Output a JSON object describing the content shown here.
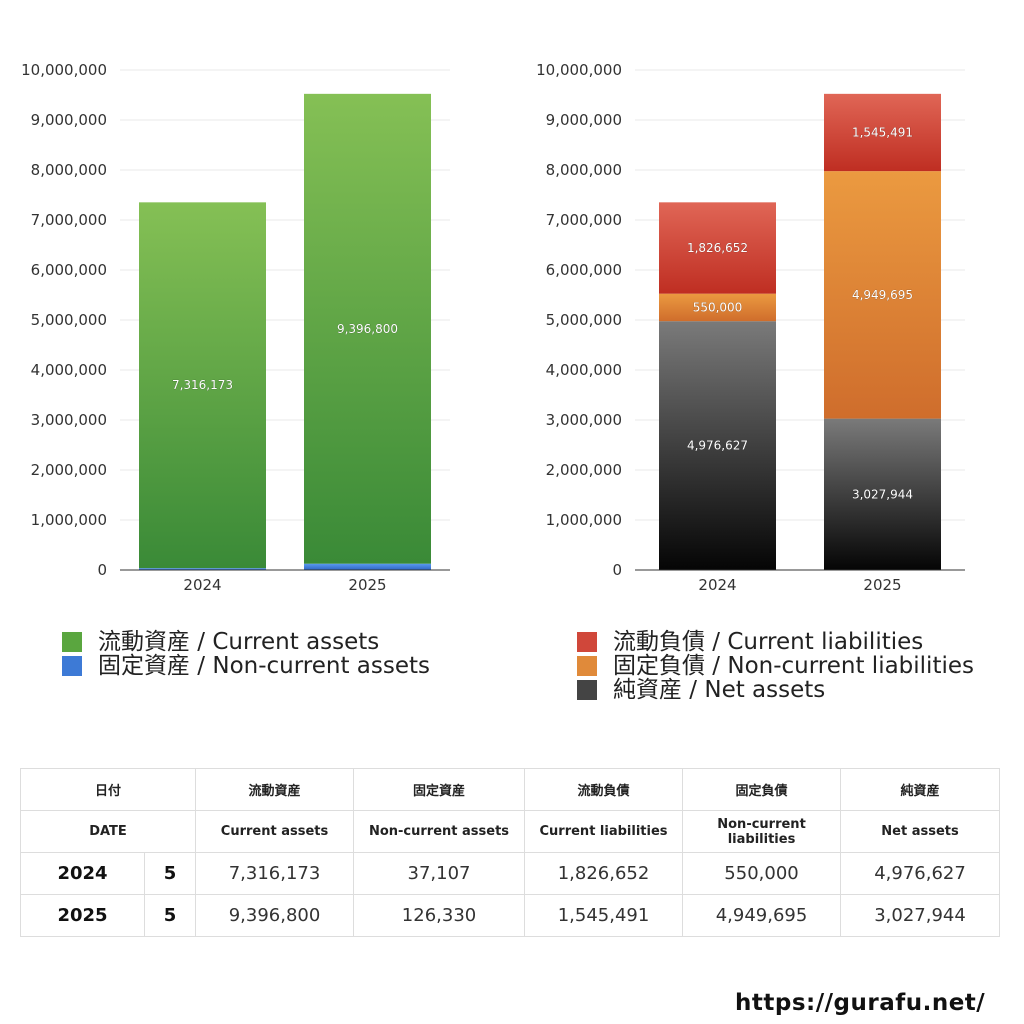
{
  "colors": {
    "current_assets": "#5aa63f",
    "noncurrent_assets": "#3d7ad6",
    "current_liabilities": "#d0473a",
    "noncurrent_liabilities": "#e08a3a",
    "net_assets": "#444444",
    "grid": "#e8e8e8",
    "axis": "#333333"
  },
  "chart_data": [
    {
      "type": "bar",
      "stacked": true,
      "categories": [
        "2024",
        "2025"
      ],
      "ylim": [
        0,
        10000000
      ],
      "yticks": [
        "0",
        "1,000,000",
        "2,000,000",
        "3,000,000",
        "4,000,000",
        "5,000,000",
        "6,000,000",
        "7,000,000",
        "8,000,000",
        "9,000,000",
        "10,000,000"
      ],
      "grid": true,
      "series": [
        {
          "name": "固定資産 / Non-current assets",
          "key": "noncurrent_assets",
          "values": [
            37107,
            126330
          ],
          "labels": [
            "37,107",
            "126,330"
          ]
        },
        {
          "name": "流動資産 / Current assets",
          "key": "current_assets",
          "values": [
            7316173,
            9396800
          ],
          "labels": [
            "7,316,173",
            "9,396,800"
          ]
        }
      ]
    },
    {
      "type": "bar",
      "stacked": true,
      "categories": [
        "2024",
        "2025"
      ],
      "ylim": [
        0,
        10000000
      ],
      "yticks": [
        "0",
        "1,000,000",
        "2,000,000",
        "3,000,000",
        "4,000,000",
        "5,000,000",
        "6,000,000",
        "7,000,000",
        "8,000,000",
        "9,000,000",
        "10,000,000"
      ],
      "grid": true,
      "series": [
        {
          "name": "純資産 / Net assets",
          "key": "net_assets",
          "values": [
            4976627,
            3027944
          ],
          "labels": [
            "4,976,627",
            "3,027,944"
          ]
        },
        {
          "name": "固定負債 / Non-current liabilities",
          "key": "noncurrent_liabilities",
          "values": [
            550000,
            4949695
          ],
          "labels": [
            "550,000",
            "4,949,695"
          ]
        },
        {
          "name": "流動負債 / Current liabilities",
          "key": "current_liabilities",
          "values": [
            1826652,
            1545491
          ],
          "labels": [
            "1,826,652",
            "1,545,491"
          ]
        }
      ]
    }
  ],
  "legend_left": [
    {
      "label": "流動資産 / Current assets",
      "color": "#5aa63f"
    },
    {
      "label": "固定資産 / Non-current assets",
      "color": "#3d7ad6"
    }
  ],
  "legend_right": [
    {
      "label": "流動負債 / Current liabilities",
      "color": "#d0473a"
    },
    {
      "label": "固定負債 / Non-current liabilities",
      "color": "#e08a3a"
    },
    {
      "label": "純資産 / Net assets",
      "color": "#444444"
    }
  ],
  "table": {
    "header_jp": [
      "日付",
      "",
      "流動資産",
      "固定資産",
      "流動負債",
      "固定負債",
      "純資産"
    ],
    "header_en": [
      "DATE",
      "",
      "Current assets",
      "Non-current assets",
      "Current liabilities",
      "Non-current liabilities",
      "Net assets"
    ],
    "rows": [
      [
        "2024",
        "5",
        "7,316,173",
        "37,107",
        "1,826,652",
        "550,000",
        "4,976,627"
      ],
      [
        "2025",
        "5",
        "9,396,800",
        "126,330",
        "1,545,491",
        "4,949,695",
        "3,027,944"
      ]
    ]
  },
  "site_url": "https://gurafu.net/"
}
